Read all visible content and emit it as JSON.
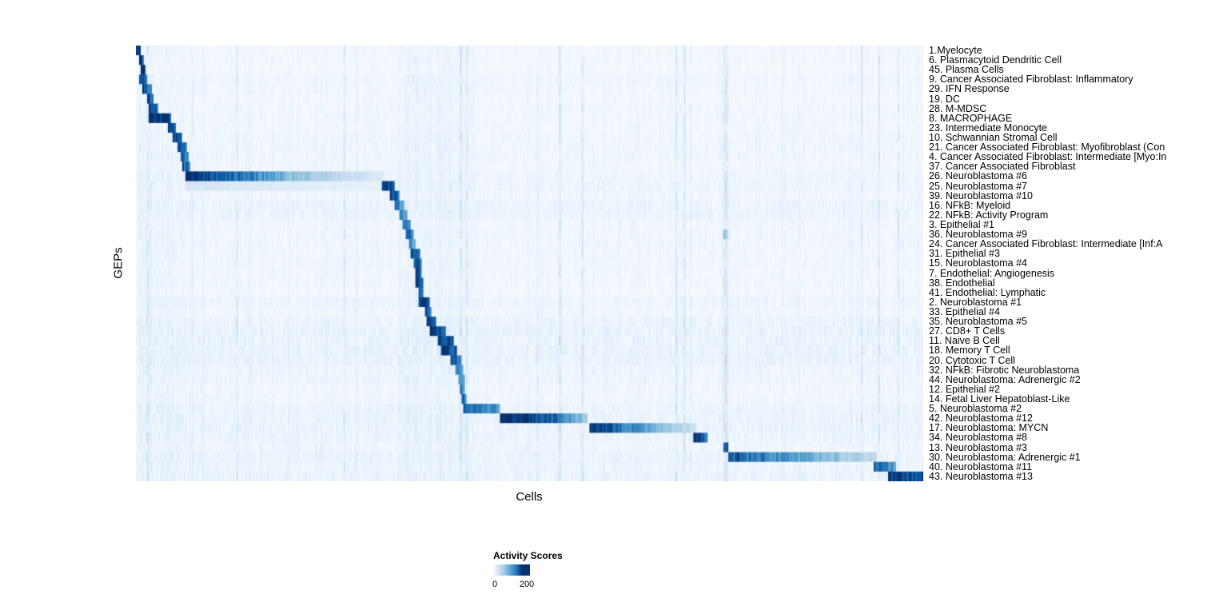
{
  "chart_data": {
    "type": "heatmap",
    "xlabel": "Cells",
    "ylabel": "GEPs",
    "colorbar": {
      "title": "Activity Scores",
      "min": 0,
      "max": 200,
      "ticks": [
        "0",
        "200"
      ],
      "palette": [
        "#f7fbff",
        "#deebf7",
        "#c6dbef",
        "#9ecae1",
        "#6baed6",
        "#4292c6",
        "#2171b5",
        "#08519c",
        "#08306b"
      ]
    },
    "rows": [
      {
        "label": "1.Myelocyte",
        "base": 5,
        "segments": [
          [
            0.0,
            0.006,
            220,
            170
          ]
        ]
      },
      {
        "label": "6. Plasmacytoid Dendritic Cell",
        "base": 5,
        "segments": [
          [
            0.003,
            0.009,
            200,
            160
          ]
        ]
      },
      {
        "label": "45. Plasma Cells",
        "base": 4,
        "segments": [
          [
            0.006,
            0.012,
            200,
            160
          ]
        ]
      },
      {
        "label": "9. Cancer Associated Fibroblast: Inflammatory",
        "base": 7,
        "segments": [
          [
            0.004,
            0.014,
            180,
            140
          ]
        ]
      },
      {
        "label": "29. IFN Response",
        "base": 6,
        "segments": [
          [
            0.008,
            0.019,
            200,
            150
          ]
        ]
      },
      {
        "label": "19. DC",
        "base": 5,
        "segments": [
          [
            0.013,
            0.022,
            190,
            150
          ]
        ]
      },
      {
        "label": "28. M-MDSC",
        "base": 6,
        "segments": [
          [
            0.015,
            0.028,
            200,
            150
          ]
        ]
      },
      {
        "label": "8. MACROPHAGE",
        "base": 6,
        "segments": [
          [
            0.016,
            0.044,
            225,
            180
          ]
        ]
      },
      {
        "label": "23. Intermediate Monocyte",
        "base": 6,
        "segments": [
          [
            0.039,
            0.05,
            190,
            150
          ]
        ]
      },
      {
        "label": "10. Schwannian Stromal Cell",
        "base": 7,
        "segments": [
          [
            0.045,
            0.058,
            200,
            150
          ]
        ]
      },
      {
        "label": "21. Cancer Associated Fibroblast: Myofibroblast (Con",
        "base": 7,
        "segments": [
          [
            0.051,
            0.064,
            180,
            140
          ]
        ]
      },
      {
        "label": "4. Cancer Associated Fibroblast: Intermediate [Myo:In",
        "base": 7,
        "segments": [
          [
            0.055,
            0.067,
            160,
            120
          ]
        ]
      },
      {
        "label": "37. Cancer Associated Fibroblast",
        "base": 6,
        "segments": [
          [
            0.058,
            0.069,
            170,
            130
          ]
        ]
      },
      {
        "label": "26. Neuroblastoma #6",
        "base": 8,
        "segments": [
          [
            0.061,
            0.1,
            230,
            185
          ],
          [
            0.1,
            0.2,
            185,
            85
          ],
          [
            0.2,
            0.315,
            85,
            25
          ]
        ]
      },
      {
        "label": "25. Neuroblastoma #7",
        "base": 9,
        "segments": [
          [
            0.061,
            0.313,
            35,
            15
          ],
          [
            0.313,
            0.328,
            210,
            150
          ]
        ]
      },
      {
        "label": "39. Neuroblastoma #10",
        "base": 7,
        "segments": [
          [
            0.322,
            0.335,
            200,
            140
          ]
        ]
      },
      {
        "label": "16. NFkB: Myeloid",
        "base": 10,
        "segments": [
          [
            0.329,
            0.341,
            150,
            100
          ]
        ]
      },
      {
        "label": "22. NFkB: Activity Program",
        "base": 10,
        "segments": [
          [
            0.334,
            0.345,
            145,
            100
          ]
        ]
      },
      {
        "label": "3. Epithelial #1",
        "base": 6,
        "segments": [
          [
            0.339,
            0.348,
            160,
            120
          ]
        ]
      },
      {
        "label": "36. Neuroblastoma #9",
        "base": 7,
        "segments": [
          [
            0.342,
            0.352,
            190,
            140
          ],
          [
            0.746,
            0.753,
            90,
            60
          ]
        ]
      },
      {
        "label": "24. Cancer Associated Fibroblast: Intermediate [Inf:A",
        "base": 7,
        "segments": [
          [
            0.346,
            0.354,
            140,
            100
          ]
        ]
      },
      {
        "label": "31. Epithelial #3",
        "base": 6,
        "segments": [
          [
            0.349,
            0.36,
            190,
            140
          ]
        ]
      },
      {
        "label": "15. Neuroblastoma #4",
        "base": 7,
        "segments": [
          [
            0.352,
            0.363,
            200,
            150
          ]
        ]
      },
      {
        "label": "7. Endothelial: Angiogenesis",
        "base": 6,
        "segments": [
          [
            0.354,
            0.362,
            205,
            160
          ]
        ]
      },
      {
        "label": "38. Endothelial",
        "base": 6,
        "segments": [
          [
            0.355,
            0.364,
            210,
            160
          ]
        ]
      },
      {
        "label": "41. Endothelial: Lymphatic",
        "base": 5,
        "segments": [
          [
            0.358,
            0.365,
            190,
            150
          ]
        ]
      },
      {
        "label": "2. Neuroblastoma #1",
        "base": 9,
        "segments": [
          [
            0.359,
            0.372,
            215,
            170
          ]
        ]
      },
      {
        "label": "33. Epithelial #4",
        "base": 6,
        "segments": [
          [
            0.366,
            0.374,
            180,
            140
          ]
        ]
      },
      {
        "label": "35. Neuroblastoma #5",
        "base": 10,
        "segments": [
          [
            0.369,
            0.382,
            200,
            150
          ]
        ]
      },
      {
        "label": "27. CD8+ T Cells",
        "base": 12,
        "segments": [
          [
            0.373,
            0.393,
            215,
            170
          ]
        ]
      },
      {
        "label": "11. Naive B Cell",
        "base": 11,
        "segments": [
          [
            0.383,
            0.403,
            215,
            170
          ]
        ]
      },
      {
        "label": "18. Memory T Cell",
        "base": 12,
        "segments": [
          [
            0.387,
            0.408,
            220,
            170
          ]
        ]
      },
      {
        "label": "20. Cytotoxic T Cell",
        "base": 12,
        "segments": [
          [
            0.4,
            0.413,
            190,
            140
          ]
        ]
      },
      {
        "label": "32. NFkB: Fibrotic Neuroblastoma",
        "base": 8,
        "segments": [
          [
            0.405,
            0.415,
            150,
            110
          ]
        ]
      },
      {
        "label": "44. Neuroblastoma: Adrenergic #2",
        "base": 8,
        "segments": [
          [
            0.409,
            0.417,
            150,
            110
          ]
        ]
      },
      {
        "label": "12. Epithelial #2",
        "base": 6,
        "segments": [
          [
            0.411,
            0.418,
            160,
            120
          ]
        ]
      },
      {
        "label": "14. Fetal Liver Hepatoblast-Like",
        "base": 7,
        "segments": [
          [
            0.413,
            0.42,
            170,
            130
          ]
        ]
      },
      {
        "label": "5. Neuroblastoma #2",
        "base": 10,
        "segments": [
          [
            0.416,
            0.463,
            170,
            115
          ]
        ]
      },
      {
        "label": "42. Neuroblastoma #12",
        "base": 11,
        "segments": [
          [
            0.462,
            0.52,
            235,
            180
          ],
          [
            0.52,
            0.575,
            180,
            70
          ]
        ]
      },
      {
        "label": "17. Neuroblastoma: MYCN",
        "base": 11,
        "segments": [
          [
            0.576,
            0.63,
            210,
            140
          ],
          [
            0.63,
            0.713,
            140,
            40
          ]
        ]
      },
      {
        "label": "34. Neuroblastoma #8",
        "base": 10,
        "segments": [
          [
            0.709,
            0.727,
            200,
            150
          ]
        ]
      },
      {
        "label": "13. Neuroblastoma #3",
        "base": 8,
        "segments": [
          [
            0.746,
            0.754,
            200,
            160
          ]
        ]
      },
      {
        "label": "30. Neuroblastoma: Adrenergic #1",
        "base": 11,
        "segments": [
          [
            0.753,
            0.8,
            190,
            145
          ],
          [
            0.8,
            0.942,
            145,
            50
          ]
        ]
      },
      {
        "label": "40. Neuroblastoma #11",
        "base": 9,
        "segments": [
          [
            0.937,
            0.966,
            170,
            120
          ]
        ]
      },
      {
        "label": "43. Neuroblastoma #13",
        "base": 11,
        "segments": [
          [
            0.957,
            1.0,
            205,
            165
          ]
        ]
      }
    ]
  }
}
